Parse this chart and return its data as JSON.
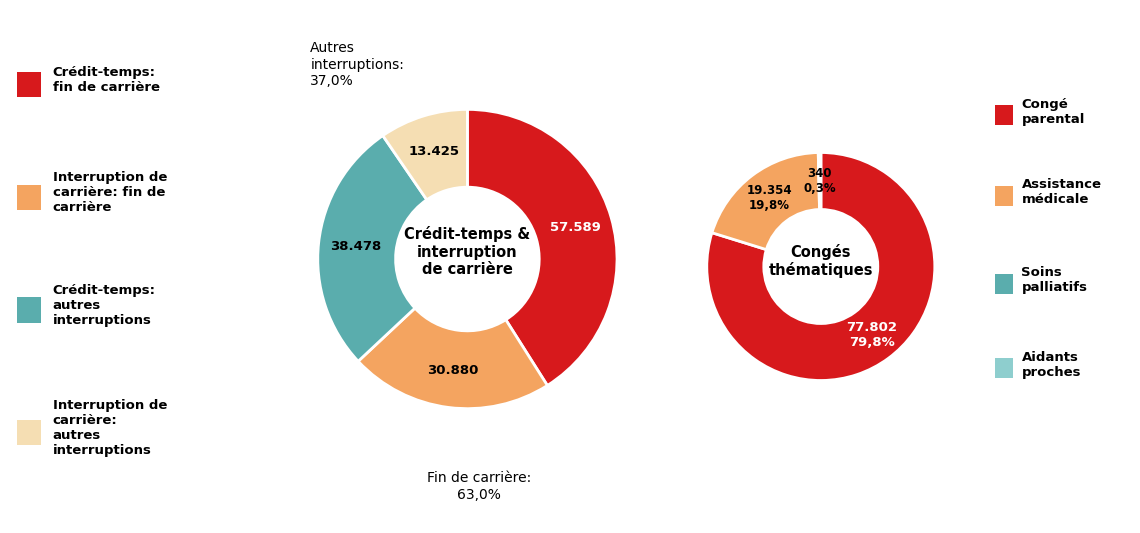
{
  "chart1": {
    "title": "Crédit-temps &\ninterruption\nde carrière",
    "values": [
      57589,
      30880,
      38478,
      13425
    ],
    "colors": [
      "#D7191C",
      "#F4A460",
      "#5AADAD",
      "#F5DEB3"
    ],
    "labels": [
      "57.589",
      "30.880",
      "38.478",
      "13.425"
    ],
    "label_colors": [
      "white",
      "black",
      "black",
      "black"
    ],
    "legend_labels": [
      "Crédit-temps:\nfin de carrière",
      "Interruption de\ncarrière: fin de\ncarrière",
      "Crédit-temps:\nautres\ninterruptions",
      "Interruption de\ncarrière:\nautres\ninterruptions"
    ],
    "annot_bottom": "Fin de carrière:\n63,0%",
    "annot_top": "Autres\ninterruptions:\n37,0%"
  },
  "chart2": {
    "title": "Congés\nthématiques",
    "values": [
      77802,
      19354,
      340,
      10
    ],
    "colors": [
      "#D7191C",
      "#F4A460",
      "#5AADAD",
      "#8ECECE"
    ],
    "labels": [
      "77.802\n79,8%",
      "19.354\n19,8%",
      "340\n0,3%",
      ""
    ],
    "label_colors": [
      "white",
      "black",
      "black",
      "black"
    ],
    "legend_labels": [
      "Congé\nparental",
      "Assistance\nmédicale",
      "Soins\npalliatifs",
      "Aidants\nproches"
    ]
  },
  "bg_color": "#FFFFFF"
}
